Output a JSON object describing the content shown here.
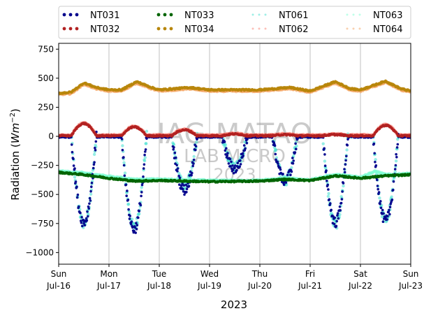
{
  "chart_data": {
    "type": "scatter",
    "xlabel": "2023",
    "ylabel_main": "Radiation (",
    "ylabel_unit_base": "Wm",
    "ylabel_unit_exp": "−2",
    "ylabel_close": ")",
    "ylim": [
      -1100,
      800
    ],
    "yticks": [
      {
        "value": 750,
        "label": "750"
      },
      {
        "value": 500,
        "label": "500"
      },
      {
        "value": 250,
        "label": "250"
      },
      {
        "value": 0,
        "label": "0"
      },
      {
        "value": -250,
        "label": "−250"
      },
      {
        "value": -500,
        "label": "−500"
      },
      {
        "value": -750,
        "label": "−750"
      },
      {
        "value": -1000,
        "label": "−1000"
      }
    ],
    "xlim_days": [
      0,
      7
    ],
    "xticks": [
      {
        "day": 0,
        "weekday": "Sun",
        "date": "Jul-16"
      },
      {
        "day": 1,
        "weekday": "Mon",
        "date": "Jul-17"
      },
      {
        "day": 2,
        "weekday": "Tue",
        "date": "Jul-18"
      },
      {
        "day": 3,
        "weekday": "Wed",
        "date": "Jul-19"
      },
      {
        "day": 4,
        "weekday": "Thu",
        "date": "Jul-20"
      },
      {
        "day": 5,
        "weekday": "Fri",
        "date": "Jul-21"
      },
      {
        "day": 6,
        "weekday": "Sat",
        "date": "Jul-22"
      },
      {
        "day": 7,
        "weekday": "Sun",
        "date": "Jul-23"
      }
    ],
    "grid": "vertical",
    "legend_placement": "top, above plot, 4 columns",
    "watermark": [
      "IAG-MATAO",
      "LAB MICRO",
      "2023"
    ],
    "series": [
      {
        "name": "NT031",
        "color": "#00008b",
        "style": "dots",
        "daily_min": [
          -740,
          -800,
          -460,
          -280,
          -380,
          -740,
          -730
        ],
        "baseline": -5
      },
      {
        "name": "NT032",
        "color": "#b22222",
        "style": "dots",
        "daily_peak": [
          110,
          80,
          55,
          20,
          15,
          15,
          95
        ],
        "baseline": 5
      },
      {
        "name": "NT033",
        "color": "#006400",
        "style": "dots",
        "points": [
          [
            0,
            -310
          ],
          [
            0.5,
            -330
          ],
          [
            1,
            -360
          ],
          [
            1.5,
            -385
          ],
          [
            2,
            -380
          ],
          [
            3,
            -390
          ],
          [
            4,
            -385
          ],
          [
            4.5,
            -370
          ],
          [
            5,
            -380
          ],
          [
            5.5,
            -340
          ],
          [
            6,
            -360
          ],
          [
            6.5,
            -340
          ],
          [
            7,
            -330
          ]
        ]
      },
      {
        "name": "NT034",
        "color": "#b8860b",
        "style": "dots",
        "points": [
          [
            0,
            370
          ],
          [
            0.25,
            380
          ],
          [
            0.5,
            460
          ],
          [
            0.75,
            420
          ],
          [
            1,
            400
          ],
          [
            1.25,
            400
          ],
          [
            1.55,
            470
          ],
          [
            1.85,
            420
          ],
          [
            2,
            400
          ],
          [
            2.6,
            420
          ],
          [
            3,
            400
          ],
          [
            4,
            400
          ],
          [
            4.6,
            420
          ],
          [
            5,
            390
          ],
          [
            5.5,
            470
          ],
          [
            5.8,
            410
          ],
          [
            6,
            400
          ],
          [
            6.5,
            475
          ],
          [
            6.8,
            410
          ],
          [
            7,
            390
          ]
        ]
      },
      {
        "name": "NT061",
        "color": "#40e0d0",
        "style": "faint-dots",
        "daily_min": [
          -750,
          -780,
          -430,
          -260,
          -380,
          -760,
          -720
        ],
        "baseline": 0
      },
      {
        "name": "NT062",
        "color": "#fa8072",
        "style": "faint-dots",
        "daily_peak": [
          115,
          85,
          60,
          25,
          20,
          20,
          100
        ],
        "baseline": 10
      },
      {
        "name": "NT063",
        "color": "#7fffd4",
        "style": "faint-dots",
        "points": [
          [
            0,
            -300
          ],
          [
            0.5,
            -315
          ],
          [
            1,
            -345
          ],
          [
            1.5,
            -370
          ],
          [
            2,
            -370
          ],
          [
            3,
            -380
          ],
          [
            4,
            -380
          ],
          [
            4.5,
            -360
          ],
          [
            5,
            -375
          ],
          [
            5.5,
            -330
          ],
          [
            6,
            -350
          ],
          [
            6.3,
            -300
          ],
          [
            6.5,
            -330
          ],
          [
            7,
            -320
          ]
        ]
      },
      {
        "name": "NT064",
        "color": "#f4a460",
        "style": "faint-dots",
        "points": [
          [
            0,
            360
          ],
          [
            0.25,
            370
          ],
          [
            0.5,
            450
          ],
          [
            0.75,
            410
          ],
          [
            1,
            390
          ],
          [
            1.25,
            390
          ],
          [
            1.55,
            460
          ],
          [
            1.85,
            410
          ],
          [
            2,
            390
          ],
          [
            2.6,
            410
          ],
          [
            3,
            390
          ],
          [
            4,
            390
          ],
          [
            4.6,
            410
          ],
          [
            5,
            380
          ],
          [
            5.5,
            460
          ],
          [
            5.8,
            400
          ],
          [
            6,
            390
          ],
          [
            6.5,
            465
          ],
          [
            6.8,
            400
          ],
          [
            7,
            380
          ]
        ]
      }
    ]
  }
}
